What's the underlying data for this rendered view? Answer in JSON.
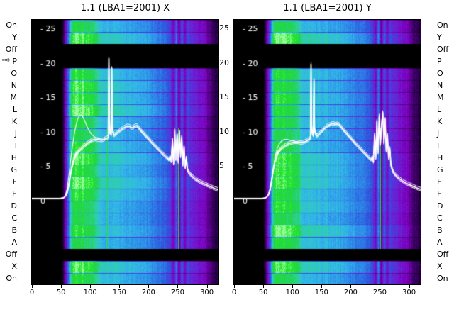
{
  "row_labels_left": [
    "On",
    "Y",
    "Off",
    "** P",
    "O",
    "N",
    "M",
    "L",
    "K",
    "J",
    "I",
    "H",
    "G",
    "F",
    "E",
    "D",
    "C",
    "B",
    "A",
    "Off",
    "X",
    "On"
  ],
  "row_labels_right": [
    "On",
    "Y",
    "Off",
    "P",
    "O",
    "N",
    "M",
    "L",
    "K",
    "J",
    "I",
    "H",
    "G",
    "F",
    "E",
    "D",
    "C",
    "B",
    "A",
    "Off",
    "X",
    "On"
  ],
  "between_panel_labels": [
    [
      "25",
      25
    ],
    [
      "20",
      20
    ],
    [
      "15",
      15
    ],
    [
      "10",
      10
    ],
    [
      "5",
      5
    ]
  ],
  "colormap": [
    [
      0,
      "#000000"
    ],
    [
      0.08,
      "#16002c"
    ],
    [
      0.18,
      "#40006a"
    ],
    [
      0.3,
      "#8000c0"
    ],
    [
      0.4,
      "#6428d8"
    ],
    [
      0.5,
      "#2d55dd"
    ],
    [
      0.6,
      "#2d87e8"
    ],
    [
      0.7,
      "#33b9ea"
    ],
    [
      0.79,
      "#2ed2a8"
    ],
    [
      0.87,
      "#23d24b"
    ],
    [
      0.94,
      "#21e62a"
    ],
    [
      1,
      "#a0ffa0"
    ]
  ],
  "heatmap_profile": [
    0,
    0,
    0,
    0,
    0,
    0,
    0,
    0,
    0,
    0,
    0.08,
    0.3,
    0.55,
    0.85,
    0.93,
    0.95,
    0.92,
    0.94,
    0.9,
    0.92,
    0.88,
    0.86,
    0.82,
    0.76,
    0.73,
    0.74,
    0.72,
    0.73,
    0.71,
    0.72,
    0.7,
    0.71,
    0.69,
    0.7,
    0.68,
    0.69,
    0.67,
    0.66,
    0.65,
    0.64,
    0.62,
    0.6,
    0.59,
    0.57,
    0.56,
    0.54,
    0.52,
    0.48,
    0.32,
    0.56,
    0.26,
    0.52,
    0.3,
    0.46,
    0.42,
    0.4,
    0.38,
    0.36,
    0.34,
    0.31,
    0.24,
    0.19,
    0.15,
    0.12
  ],
  "black_rows": [
    2,
    3,
    19
  ],
  "chart_data": [
    {
      "type": "heatmap",
      "title": "1.1 (LBA1=2001) X",
      "xlabel": "",
      "ylabel": "",
      "xlim": [
        0,
        320
      ],
      "ylim": [
        0,
        29
      ],
      "x_ticks": [
        0,
        50,
        100,
        150,
        200,
        250,
        300
      ],
      "y_axis_inner_labels": [
        [
          "- 25",
          25
        ],
        [
          "- 20",
          20
        ],
        [
          "- 15",
          15
        ],
        [
          "- 10",
          10
        ],
        [
          "- 5",
          5
        ],
        [
          "0",
          0
        ]
      ],
      "green_lines": [
        130,
        251
      ],
      "curve_main": [
        [
          0,
          0.3
        ],
        [
          48,
          0.3
        ],
        [
          54,
          0.4
        ],
        [
          58,
          0.7
        ],
        [
          61,
          1.3
        ],
        [
          64,
          2.6
        ],
        [
          67,
          4.2
        ],
        [
          70,
          5.4
        ],
        [
          73,
          6.2
        ],
        [
          76,
          6.8
        ],
        [
          80,
          7.2
        ],
        [
          84,
          7.5
        ],
        [
          88,
          7.8
        ],
        [
          92,
          8.1
        ],
        [
          96,
          8.4
        ],
        [
          100,
          8.6
        ],
        [
          104,
          8.8
        ],
        [
          108,
          8.9
        ],
        [
          112,
          8.85
        ],
        [
          116,
          8.8
        ],
        [
          120,
          8.75
        ],
        [
          123,
          8.85
        ],
        [
          126,
          9.0
        ],
        [
          129,
          9.1
        ],
        [
          131,
          9.2
        ],
        [
          132,
          20.6
        ],
        [
          133,
          11.5
        ],
        [
          134,
          9.8
        ],
        [
          136,
          9.6
        ],
        [
          137,
          19.2
        ],
        [
          138,
          11.0
        ],
        [
          139,
          9.9
        ],
        [
          141,
          9.5
        ],
        [
          144,
          9.7
        ],
        [
          148,
          10.0
        ],
        [
          152,
          10.25
        ],
        [
          156,
          10.5
        ],
        [
          160,
          10.7
        ],
        [
          164,
          10.85
        ],
        [
          168,
          10.75
        ],
        [
          171,
          10.55
        ],
        [
          174,
          10.65
        ],
        [
          177,
          10.85
        ],
        [
          180,
          10.9
        ],
        [
          183,
          10.6
        ],
        [
          186,
          10.3
        ],
        [
          189,
          10.0
        ],
        [
          192,
          9.7
        ],
        [
          196,
          9.35
        ],
        [
          200,
          9.0
        ],
        [
          204,
          8.6
        ],
        [
          208,
          8.25
        ],
        [
          212,
          7.9
        ],
        [
          216,
          7.55
        ],
        [
          220,
          7.2
        ],
        [
          224,
          6.85
        ],
        [
          228,
          6.5
        ],
        [
          232,
          6.2
        ],
        [
          235,
          5.95
        ],
        [
          237,
          6.3
        ],
        [
          239,
          5.7
        ],
        [
          241,
          8.8
        ],
        [
          242,
          6.5
        ],
        [
          243,
          5.4
        ],
        [
          245,
          10.3
        ],
        [
          246,
          7.5
        ],
        [
          247,
          6.0
        ],
        [
          249,
          9.6
        ],
        [
          251,
          5.6
        ],
        [
          253,
          10.0
        ],
        [
          255,
          6.4
        ],
        [
          257,
          9.2
        ],
        [
          259,
          5.2
        ],
        [
          261,
          7.8
        ],
        [
          263,
          4.8
        ],
        [
          265,
          6.2
        ],
        [
          267,
          4.4
        ],
        [
          270,
          4.0
        ],
        [
          274,
          3.6
        ],
        [
          278,
          3.3
        ],
        [
          282,
          3.05
        ],
        [
          286,
          2.85
        ],
        [
          290,
          2.65
        ],
        [
          294,
          2.5
        ],
        [
          298,
          2.35
        ],
        [
          302,
          2.2
        ],
        [
          306,
          2.05
        ],
        [
          310,
          1.9
        ],
        [
          314,
          1.75
        ],
        [
          318,
          1.65
        ],
        [
          320,
          1.6
        ]
      ],
      "curve_secondary": [
        [
          54,
          0.35
        ],
        [
          57,
          0.7
        ],
        [
          60,
          1.6
        ],
        [
          63,
          3.4
        ],
        [
          66,
          5.6
        ],
        [
          69,
          7.6
        ],
        [
          72,
          9.3
        ],
        [
          75,
          10.7
        ],
        [
          78,
          11.7
        ],
        [
          81,
          12.3
        ],
        [
          84,
          12.45
        ],
        [
          87,
          12.2
        ],
        [
          90,
          11.7
        ],
        [
          93,
          11.1
        ],
        [
          96,
          10.5
        ],
        [
          100,
          9.9
        ],
        [
          104,
          9.5
        ],
        [
          108,
          9.2
        ],
        [
          112,
          9.05
        ],
        [
          116,
          8.95
        ],
        [
          120,
          8.85
        ],
        [
          126,
          9.0
        ]
      ]
    },
    {
      "type": "heatmap",
      "title": "1.1 (LBA1=2001) Y",
      "xlabel": "",
      "ylabel": "",
      "xlim": [
        0,
        320
      ],
      "ylim": [
        0,
        29
      ],
      "x_ticks": [
        0,
        50,
        100,
        150,
        200,
        250,
        300
      ],
      "y_axis_inner_labels": [
        [
          "- 25",
          25
        ],
        [
          "- 20",
          20
        ],
        [
          "- 15",
          15
        ],
        [
          "- 10",
          10
        ],
        [
          "- 5",
          5
        ],
        [
          "0",
          0
        ]
      ],
      "green_lines": [
        110,
        251
      ],
      "curve_main": [
        [
          0,
          0.3
        ],
        [
          48,
          0.3
        ],
        [
          54,
          0.4
        ],
        [
          58,
          0.7
        ],
        [
          61,
          1.3
        ],
        [
          64,
          2.7
        ],
        [
          67,
          4.4
        ],
        [
          70,
          5.7
        ],
        [
          73,
          6.5
        ],
        [
          76,
          7.1
        ],
        [
          80,
          7.5
        ],
        [
          84,
          7.8
        ],
        [
          88,
          8.0
        ],
        [
          92,
          8.2
        ],
        [
          96,
          8.35
        ],
        [
          100,
          8.45
        ],
        [
          104,
          8.5
        ],
        [
          108,
          8.5
        ],
        [
          112,
          8.45
        ],
        [
          116,
          8.4
        ],
        [
          120,
          8.5
        ],
        [
          124,
          8.65
        ],
        [
          127,
          8.85
        ],
        [
          129,
          8.9
        ],
        [
          131,
          9.1
        ],
        [
          132,
          19.8
        ],
        [
          133,
          11.0
        ],
        [
          134,
          9.8
        ],
        [
          136,
          9.5
        ],
        [
          137,
          17.5
        ],
        [
          138,
          10.5
        ],
        [
          139,
          9.9
        ],
        [
          142,
          9.4
        ],
        [
          146,
          9.7
        ],
        [
          150,
          10.05
        ],
        [
          154,
          10.4
        ],
        [
          158,
          10.7
        ],
        [
          162,
          10.95
        ],
        [
          166,
          11.1
        ],
        [
          170,
          11.2
        ],
        [
          174,
          11.05
        ],
        [
          177,
          11.15
        ],
        [
          180,
          11.05
        ],
        [
          183,
          10.75
        ],
        [
          186,
          10.45
        ],
        [
          189,
          10.15
        ],
        [
          192,
          9.85
        ],
        [
          196,
          9.45
        ],
        [
          200,
          9.1
        ],
        [
          204,
          8.7
        ],
        [
          208,
          8.3
        ],
        [
          212,
          7.95
        ],
        [
          216,
          7.6
        ],
        [
          220,
          7.25
        ],
        [
          224,
          6.9
        ],
        [
          228,
          6.55
        ],
        [
          232,
          6.2
        ],
        [
          235,
          5.95
        ],
        [
          237,
          6.25
        ],
        [
          239,
          5.65
        ],
        [
          241,
          9.5
        ],
        [
          243,
          6.2
        ],
        [
          245,
          11.5
        ],
        [
          246,
          8.0
        ],
        [
          247,
          7.0
        ],
        [
          249,
          12.3
        ],
        [
          251,
          8.2
        ],
        [
          253,
          11.0
        ],
        [
          255,
          12.8
        ],
        [
          257,
          8.4
        ],
        [
          259,
          11.8
        ],
        [
          261,
          7.2
        ],
        [
          263,
          9.5
        ],
        [
          265,
          6.2
        ],
        [
          267,
          7.6
        ],
        [
          269,
          5.2
        ],
        [
          272,
          4.3
        ],
        [
          276,
          3.8
        ],
        [
          280,
          3.45
        ],
        [
          284,
          3.15
        ],
        [
          288,
          2.9
        ],
        [
          292,
          2.7
        ],
        [
          296,
          2.5
        ],
        [
          300,
          2.35
        ],
        [
          304,
          2.2
        ],
        [
          308,
          2.05
        ],
        [
          312,
          1.9
        ],
        [
          316,
          1.75
        ],
        [
          320,
          1.65
        ]
      ],
      "curve_secondary": [
        [
          58,
          0.7
        ],
        [
          62,
          1.6
        ],
        [
          66,
          3.6
        ],
        [
          70,
          6.2
        ],
        [
          74,
          7.6
        ],
        [
          78,
          8.3
        ],
        [
          82,
          8.7
        ],
        [
          86,
          8.9
        ],
        [
          90,
          8.9
        ],
        [
          95,
          8.8
        ],
        [
          100,
          8.7
        ],
        [
          105,
          8.6
        ],
        [
          110,
          8.55
        ],
        [
          115,
          8.5
        ],
        [
          120,
          8.55
        ]
      ]
    }
  ]
}
